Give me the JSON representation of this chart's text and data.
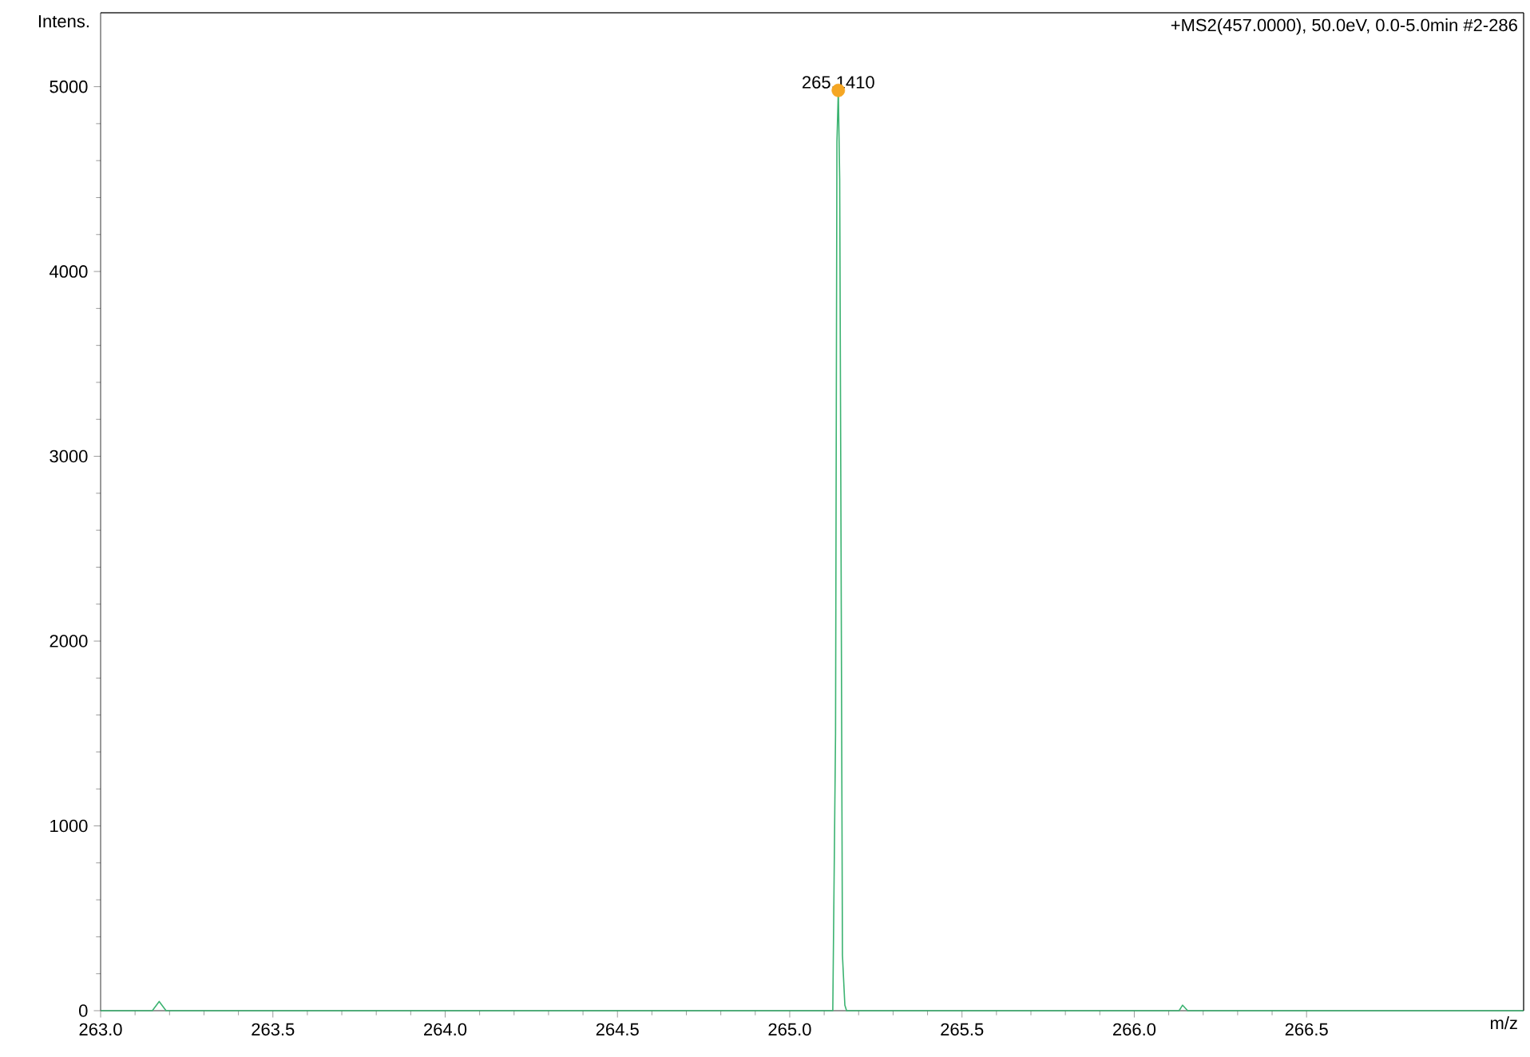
{
  "chart_data": {
    "type": "line",
    "title": "+MS2(457.0000), 50.0eV, 0.0-5.0min #2-286",
    "xlabel": "m/z",
    "ylabel": "Intens.",
    "xlim": [
      263.0,
      267.13
    ],
    "ylim": [
      0,
      5400
    ],
    "xticks": [
      {
        "value": 263.0,
        "label": "263.0"
      },
      {
        "value": 263.5,
        "label": "263.5"
      },
      {
        "value": 264.0,
        "label": "264.0"
      },
      {
        "value": 264.5,
        "label": "264.5"
      },
      {
        "value": 265.0,
        "label": "265.0"
      },
      {
        "value": 265.5,
        "label": "265.5"
      },
      {
        "value": 266.0,
        "label": "266.0"
      },
      {
        "value": 266.5,
        "label": "266.5"
      }
    ],
    "yticks": [
      0,
      1000,
      2000,
      3000,
      4000,
      5000
    ],
    "series": [
      {
        "color": "#3cb371",
        "x": [
          263.0,
          263.1,
          263.15,
          263.17,
          263.19,
          263.25,
          265.0,
          265.125,
          265.133,
          265.137,
          265.141,
          265.145,
          265.149,
          265.153,
          265.16,
          265.165,
          265.17,
          265.3,
          266.1,
          266.13,
          266.14,
          266.155,
          266.2,
          267.13
        ],
        "values": [
          0,
          0,
          0,
          50,
          0,
          0,
          0,
          0,
          1500,
          4700,
          4980,
          4500,
          2500,
          300,
          30,
          0,
          0,
          0,
          0,
          0,
          30,
          0,
          0,
          0
        ]
      },
      {
        "type": "scatter",
        "color": "#f5a623",
        "marker": "circle",
        "x": [
          265.141
        ],
        "values": [
          4980
        ]
      }
    ],
    "annotations": [
      {
        "text": "265.1410",
        "x": 265.141,
        "y": 4980
      }
    ]
  }
}
